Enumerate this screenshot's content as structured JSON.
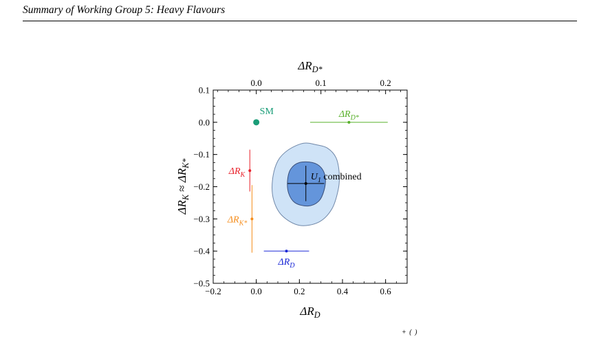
{
  "page": {
    "running_head": "Summary of Working Group 5: Heavy Flavours",
    "caption_fragment": "+ ( )"
  },
  "chart_data": {
    "type": "scatter",
    "xlabel": "ΔR_D",
    "ylabel": "ΔR_K ≈ ΔR_K*",
    "top_xlabel": "ΔR_D*",
    "xlim": [
      -0.2,
      0.7
    ],
    "ylim": [
      -0.5,
      0.1
    ],
    "x_ticks": [
      {
        "value": -0.2,
        "label": "−0.2"
      },
      {
        "value": 0.0,
        "label": "0.0"
      },
      {
        "value": 0.2,
        "label": "0.2"
      },
      {
        "value": 0.4,
        "label": "0.4"
      },
      {
        "value": 0.6,
        "label": "0.6"
      }
    ],
    "y_ticks": [
      {
        "value": 0.1,
        "label": "0.1"
      },
      {
        "value": 0.0,
        "label": "0.0"
      },
      {
        "value": -0.1,
        "label": "−0.1"
      },
      {
        "value": -0.2,
        "label": "−0.2"
      },
      {
        "value": -0.3,
        "label": "−0.3"
      },
      {
        "value": -0.4,
        "label": "−0.4"
      },
      {
        "value": -0.5,
        "label": "−0.5"
      }
    ],
    "top_x_ticks": [
      {
        "value": 0.0,
        "label": "0.0"
      },
      {
        "value": 0.1,
        "label": "0.1"
      },
      {
        "value": 0.2,
        "label": "0.2"
      }
    ],
    "top_axis_scale": 3.0,
    "grid": false,
    "points": [
      {
        "label": "SM",
        "x": 0.0,
        "y": 0.0,
        "color": "#1a9d78",
        "marker": "large-dot"
      },
      {
        "label": "ΔR_D*",
        "x": 0.43,
        "y": 0.0,
        "xerr": [
          0.18,
          0.18
        ],
        "color": "#58b02a"
      },
      {
        "label": "ΔR_K",
        "x": -0.03,
        "y": -0.15,
        "yerr": [
          0.065,
          0.065
        ],
        "color": "#e8202a"
      },
      {
        "label": "ΔR_K*",
        "x": -0.02,
        "y": -0.3,
        "yerr": [
          0.105,
          0.105
        ],
        "color": "#f58c1a"
      },
      {
        "label": "ΔR_D",
        "x": 0.14,
        "y": -0.4,
        "xerr": [
          0.105,
          0.105
        ],
        "color": "#1a27d6"
      },
      {
        "label": "U_1 combined",
        "x": 0.23,
        "y": -0.19,
        "xerr": [
          0.085,
          0.085
        ],
        "yerr": [
          0.055,
          0.055
        ],
        "color": "#000000"
      }
    ],
    "regions": [
      {
        "name": "outer",
        "color": "#cfe3f7",
        "stroke": "#6f87a8",
        "contour": [
          [
            0.28,
            -0.07
          ],
          [
            0.33,
            -0.08
          ],
          [
            0.37,
            -0.11
          ],
          [
            0.385,
            -0.16
          ],
          [
            0.38,
            -0.21
          ],
          [
            0.35,
            -0.27
          ],
          [
            0.29,
            -0.31
          ],
          [
            0.2,
            -0.32
          ],
          [
            0.12,
            -0.29
          ],
          [
            0.08,
            -0.24
          ],
          [
            0.075,
            -0.18
          ],
          [
            0.1,
            -0.12
          ],
          [
            0.15,
            -0.085
          ],
          [
            0.22,
            -0.065
          ]
        ]
      },
      {
        "name": "inner",
        "color": "#6495db",
        "stroke": "#3a4e78",
        "contour": [
          [
            0.26,
            -0.125
          ],
          [
            0.3,
            -0.14
          ],
          [
            0.32,
            -0.17
          ],
          [
            0.315,
            -0.21
          ],
          [
            0.29,
            -0.245
          ],
          [
            0.24,
            -0.26
          ],
          [
            0.18,
            -0.25
          ],
          [
            0.15,
            -0.22
          ],
          [
            0.145,
            -0.18
          ],
          [
            0.16,
            -0.145
          ],
          [
            0.2,
            -0.125
          ]
        ]
      }
    ]
  }
}
